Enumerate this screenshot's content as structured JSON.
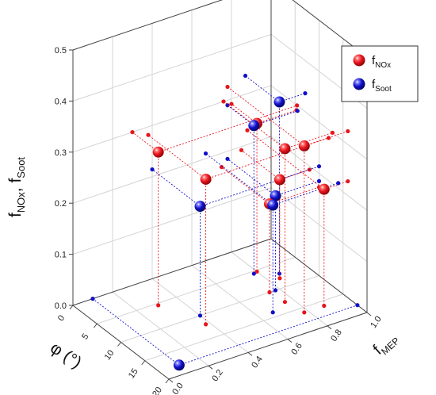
{
  "chart_data": {
    "type": "scatter",
    "mode": "3d",
    "axes": {
      "x": {
        "label": "φ (°)",
        "ticks": [
          "0",
          "5",
          "10",
          "15",
          "20"
        ],
        "range": [
          0,
          20
        ]
      },
      "y": {
        "label_main": "f",
        "label_sub": "MEP",
        "ticks": [
          "0.0",
          "0.2",
          "0.4",
          "0.6",
          "0.8",
          "1.0"
        ],
        "range": [
          0,
          1
        ]
      },
      "z": {
        "label_main1": "f",
        "label_sub1": "NOx",
        "label_comma": ", ",
        "label_main2": "f",
        "label_sub2": "Soot",
        "ticks": [
          "0.0",
          "0.1",
          "0.2",
          "0.3",
          "0.4",
          "0.5"
        ],
        "range": [
          0,
          0.5
        ]
      }
    },
    "grid": true,
    "legend_position": "top-right",
    "series": [
      {
        "name_main": "f",
        "name_sub": "NOx",
        "color": "#e8141b",
        "points": [
          {
            "x": 8.0,
            "y": 0.85,
            "z": 0.193
          },
          {
            "x": 10.0,
            "y": 0.75,
            "z": 0.173
          },
          {
            "x": 5.3,
            "y": 0.8,
            "z": 0.29
          },
          {
            "x": 12.8,
            "y": 0.76,
            "z": 0.3
          },
          {
            "x": 16.0,
            "y": 0.78,
            "z": 0.326
          },
          {
            "x": 16.0,
            "y": 0.88,
            "z": 0.228
          },
          {
            "x": 12.0,
            "y": 0.38,
            "z": 0.284
          },
          {
            "x": 5.4,
            "y": 0.3,
            "z": 0.3
          }
        ]
      },
      {
        "name_main": "f",
        "name_sub": "Soot",
        "color": "#1010c8",
        "points": [
          {
            "x": 7.1,
            "y": 0.87,
            "z": 0.336
          },
          {
            "x": 10.0,
            "y": 0.4,
            "z": 0.214
          },
          {
            "x": 14.0,
            "y": 0.67,
            "z": 0.21
          },
          {
            "x": 10.0,
            "y": 0.78,
            "z": 0.185
          },
          {
            "x": 18.0,
            "y": 0.1,
            "z": 0.0
          },
          {
            "x": 5.5,
            "y": 0.78,
            "z": 0.29
          }
        ]
      }
    ]
  }
}
